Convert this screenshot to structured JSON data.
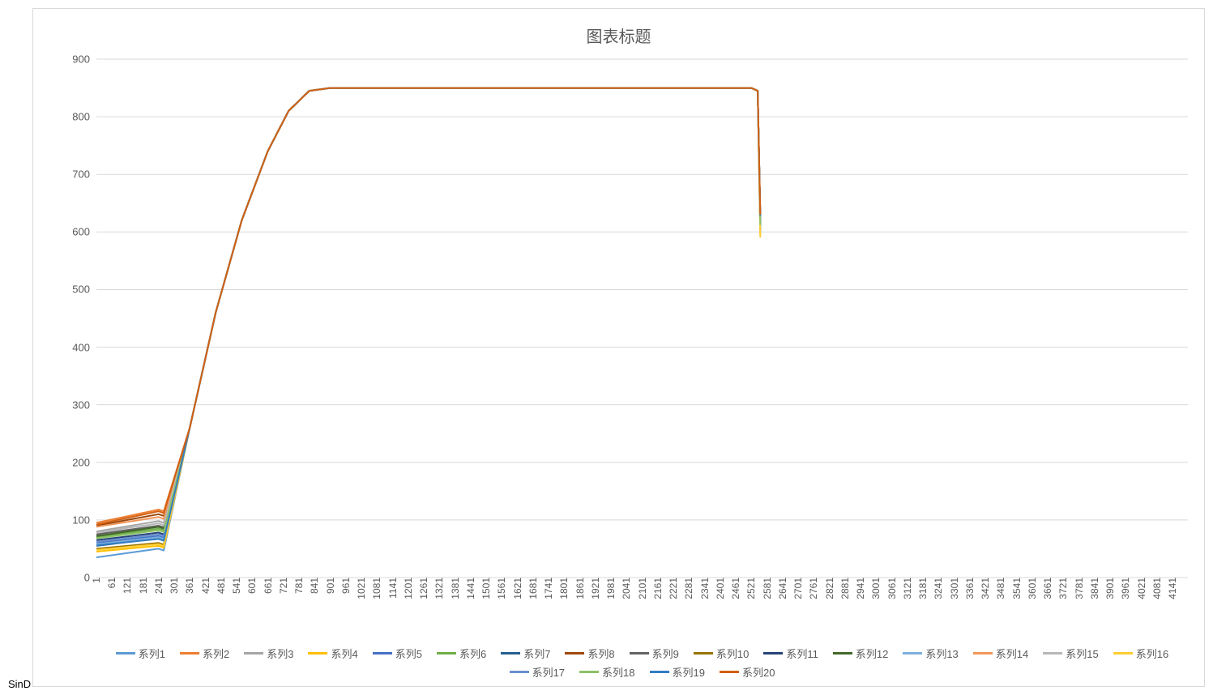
{
  "footer_text": "SinD",
  "chart": {
    "type": "line",
    "title": "图表标题",
    "title_fontsize": 20,
    "title_color": "#595959",
    "label_fontsize": 13,
    "label_color": "#595959",
    "background_color": "#ffffff",
    "border_color": "#d9d9d9",
    "grid_color": "#d9d9d9",
    "line_width": 2,
    "ylim": [
      0,
      900
    ],
    "ytick_step": 100,
    "yticks": [
      0,
      100,
      200,
      300,
      400,
      500,
      600,
      700,
      800,
      900
    ],
    "xticks": [
      1,
      61,
      121,
      181,
      241,
      301,
      361,
      421,
      481,
      541,
      601,
      661,
      721,
      781,
      841,
      901,
      961,
      1021,
      1081,
      1141,
      1201,
      1261,
      1321,
      1381,
      1441,
      1501,
      1561,
      1621,
      1681,
      1741,
      1801,
      1861,
      1921,
      1981,
      2041,
      2101,
      2161,
      2221,
      2281,
      2341,
      2401,
      2461,
      2521,
      2581,
      2641,
      2701,
      2761,
      2821,
      2881,
      2941,
      3001,
      3061,
      3121,
      3181,
      3241,
      3301,
      3361,
      3421,
      3481,
      3541,
      3601,
      3661,
      3721,
      3781,
      3841,
      3901,
      3961,
      4021,
      4081,
      4141
    ],
    "x_domain": [
      1,
      4200
    ],
    "x_data_end": 2560,
    "colors": {
      "s1": "#5b9bd5",
      "s2": "#ed7d31",
      "s3": "#a5a5a5",
      "s4": "#ffc000",
      "s5": "#4472c4",
      "s6": "#70ad47",
      "s7": "#255e91",
      "s8": "#9e480e",
      "s9": "#636363",
      "s10": "#997300",
      "s11": "#264478",
      "s12": "#43682b",
      "s13": "#7cafdd",
      "s14": "#f1975a",
      "s15": "#b7b7b7",
      "s16": "#ffcd33",
      "s17": "#698ed0",
      "s18": "#8cc168",
      "s19": "#327dc2",
      "s20": "#d26012"
    },
    "series": [
      {
        "id": "s1",
        "label": "系列1",
        "start": 35,
        "flat": 50,
        "end": 600
      },
      {
        "id": "s2",
        "label": "系列2",
        "start": 95,
        "flat": 118,
        "end": 630
      },
      {
        "id": "s3",
        "label": "系列3",
        "start": 80,
        "flat": 98,
        "end": 620
      },
      {
        "id": "s4",
        "label": "系列4",
        "start": 45,
        "flat": 55,
        "end": 595
      },
      {
        "id": "s5",
        "label": "系列5",
        "start": 60,
        "flat": 72,
        "end": 615
      },
      {
        "id": "s6",
        "label": "系列6",
        "start": 70,
        "flat": 85,
        "end": 610
      },
      {
        "id": "s7",
        "label": "系列7",
        "start": 55,
        "flat": 68,
        "end": 625
      },
      {
        "id": "s8",
        "label": "系列8",
        "start": 90,
        "flat": 110,
        "end": 630
      },
      {
        "id": "s9",
        "label": "系列9",
        "start": 75,
        "flat": 90,
        "end": 620
      },
      {
        "id": "s10",
        "label": "系列10",
        "start": 50,
        "flat": 60,
        "end": 605
      },
      {
        "id": "s11",
        "label": "系列11",
        "start": 65,
        "flat": 78,
        "end": 630
      },
      {
        "id": "s12",
        "label": "系列12",
        "start": 72,
        "flat": 88,
        "end": 615
      },
      {
        "id": "s13",
        "label": "系列13",
        "start": 58,
        "flat": 70,
        "end": 600
      },
      {
        "id": "s14",
        "label": "系列14",
        "start": 88,
        "flat": 105,
        "end": 625
      },
      {
        "id": "s15",
        "label": "系列15",
        "start": 78,
        "flat": 94,
        "end": 618
      },
      {
        "id": "s16",
        "label": "系列16",
        "start": 48,
        "flat": 58,
        "end": 590
      },
      {
        "id": "s17",
        "label": "系列17",
        "start": 62,
        "flat": 75,
        "end": 622
      },
      {
        "id": "s18",
        "label": "系列18",
        "start": 68,
        "flat": 82,
        "end": 612
      },
      {
        "id": "s19",
        "label": "系列19",
        "start": 56,
        "flat": 67,
        "end": 628
      },
      {
        "id": "s20",
        "label": "系列20",
        "start": 92,
        "flat": 115,
        "end": 630
      }
    ],
    "shared_curve": {
      "rise_start_x": 260,
      "knee_x": 820,
      "plateau_y": 850,
      "plateau_end_x": 2520,
      "drop_x": 2555
    }
  }
}
